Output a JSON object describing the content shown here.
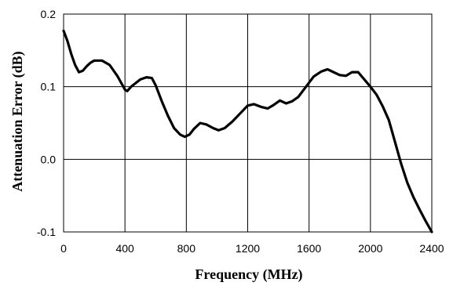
{
  "chart_data": {
    "type": "line",
    "title": "",
    "xlabel": "Frequency (MHz)",
    "ylabel": "Attenuation Error (dB)",
    "xlim": [
      0,
      2400
    ],
    "ylim": [
      -0.1,
      0.2
    ],
    "x_ticks": [
      0,
      400,
      800,
      1200,
      1600,
      2000,
      2400
    ],
    "y_ticks": [
      -0.1,
      0.0,
      0.1,
      0.2
    ],
    "x_tick_labels": [
      "0",
      "400",
      "800",
      "1200",
      "1600",
      "2000",
      "2400"
    ],
    "y_tick_labels": [
      "-0.1",
      "0.0",
      "0.1",
      "0.2"
    ],
    "grid": true,
    "legend": "none",
    "series": [
      {
        "color": "#000000",
        "points": [
          [
            0,
            0.177
          ],
          [
            25,
            0.163
          ],
          [
            50,
            0.145
          ],
          [
            75,
            0.13
          ],
          [
            100,
            0.12
          ],
          [
            125,
            0.122
          ],
          [
            150,
            0.128
          ],
          [
            175,
            0.133
          ],
          [
            200,
            0.136
          ],
          [
            250,
            0.136
          ],
          [
            300,
            0.13
          ],
          [
            350,
            0.115
          ],
          [
            400,
            0.096
          ],
          [
            415,
            0.094
          ],
          [
            440,
            0.1
          ],
          [
            500,
            0.11
          ],
          [
            540,
            0.113
          ],
          [
            575,
            0.112
          ],
          [
            600,
            0.102
          ],
          [
            640,
            0.08
          ],
          [
            680,
            0.06
          ],
          [
            720,
            0.043
          ],
          [
            760,
            0.034
          ],
          [
            790,
            0.031
          ],
          [
            820,
            0.034
          ],
          [
            850,
            0.042
          ],
          [
            890,
            0.05
          ],
          [
            930,
            0.048
          ],
          [
            975,
            0.043
          ],
          [
            1010,
            0.04
          ],
          [
            1050,
            0.043
          ],
          [
            1100,
            0.052
          ],
          [
            1150,
            0.063
          ],
          [
            1200,
            0.074
          ],
          [
            1240,
            0.076
          ],
          [
            1290,
            0.072
          ],
          [
            1330,
            0.07
          ],
          [
            1370,
            0.075
          ],
          [
            1410,
            0.081
          ],
          [
            1450,
            0.077
          ],
          [
            1490,
            0.08
          ],
          [
            1530,
            0.086
          ],
          [
            1580,
            0.1
          ],
          [
            1630,
            0.114
          ],
          [
            1680,
            0.121
          ],
          [
            1720,
            0.124
          ],
          [
            1760,
            0.12
          ],
          [
            1800,
            0.116
          ],
          [
            1840,
            0.115
          ],
          [
            1880,
            0.12
          ],
          [
            1920,
            0.12
          ],
          [
            1960,
            0.11
          ],
          [
            2000,
            0.1
          ],
          [
            2040,
            0.089
          ],
          [
            2080,
            0.073
          ],
          [
            2120,
            0.054
          ],
          [
            2160,
            0.024
          ],
          [
            2200,
            -0.006
          ],
          [
            2240,
            -0.032
          ],
          [
            2280,
            -0.052
          ],
          [
            2320,
            -0.069
          ],
          [
            2360,
            -0.085
          ],
          [
            2400,
            -0.1
          ]
        ]
      }
    ]
  }
}
